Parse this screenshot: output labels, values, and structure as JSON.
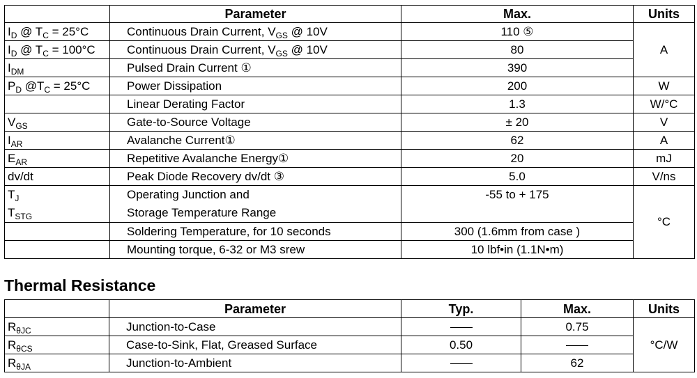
{
  "abs_max": {
    "headers": {
      "parameter": "Parameter",
      "max": "Max.",
      "units": "Units"
    },
    "rows": [
      {
        "sym_main": "I",
        "sym_sub": "D",
        "sym_rest": " @ T",
        "sym_sub2": "C",
        "sym_tail": " = 25°C",
        "param_main": "Continuous Drain Current, V",
        "param_sub": "GS",
        "param_tail": " @ 10V",
        "max": "110 ⑤",
        "unit": "A"
      },
      {
        "sym_main": "I",
        "sym_sub": "D",
        "sym_rest": " @ T",
        "sym_sub2": "C",
        "sym_tail": " = 100°C",
        "param_main": "Continuous Drain Current, V",
        "param_sub": "GS",
        "param_tail": " @ 10V",
        "max": "80"
      },
      {
        "sym_main": "I",
        "sym_sub": "DM",
        "param": "Pulsed Drain Current ①",
        "max": "390"
      },
      {
        "sym_main": "P",
        "sym_sub": "D",
        "sym_rest": " @T",
        "sym_sub2": "C",
        "sym_tail": " = 25°C",
        "param": "Power Dissipation",
        "max": "200",
        "unit": "W"
      },
      {
        "param": "Linear Derating Factor",
        "max": "1.3",
        "unit": "W/°C"
      },
      {
        "sym_main": "V",
        "sym_sub": "GS",
        "param": "Gate-to-Source Voltage",
        "max": "± 20",
        "unit": "V"
      },
      {
        "sym_main": "I",
        "sym_sub": "AR",
        "param": "Avalanche Current①",
        "max": "62",
        "unit": "A"
      },
      {
        "sym_main": "E",
        "sym_sub": "AR",
        "param": "Repetitive Avalanche Energy①",
        "max": "20",
        "unit": "mJ"
      },
      {
        "sym": "dv/dt",
        "param": "Peak Diode Recovery dv/dt ③",
        "max": "5.0",
        "unit": "V/ns"
      },
      {
        "sym1_main": "T",
        "sym1_sub": "J",
        "sym2_main": "T",
        "sym2_sub": "STG",
        "param1": "Operating Junction and",
        "param2": "Storage Temperature Range",
        "max": "-55  to + 175",
        "unit": "°C"
      },
      {
        "param": "Soldering Temperature, for 10 seconds",
        "max": "300 (1.6mm from case )"
      },
      {
        "param": "Mounting torque, 6-32 or M3 srew",
        "max": "10 lbf•in (1.1N•m)"
      }
    ]
  },
  "thermal": {
    "title": "Thermal Resistance",
    "headers": {
      "parameter": "Parameter",
      "typ": "Typ.",
      "max": "Max.",
      "units": "Units"
    },
    "unit": "°C/W",
    "rows": [
      {
        "sym_main": "R",
        "sym_sub": "θJC",
        "param": "Junction-to-Case",
        "typ": "",
        "max": "0.75"
      },
      {
        "sym_main": "R",
        "sym_sub": "θCS",
        "param": "Case-to-Sink, Flat, Greased Surface",
        "typ": "0.50",
        "max": ""
      },
      {
        "sym_main": "R",
        "sym_sub": "θJA",
        "param": "Junction-to-Ambient",
        "typ": "",
        "max": "62"
      }
    ]
  }
}
